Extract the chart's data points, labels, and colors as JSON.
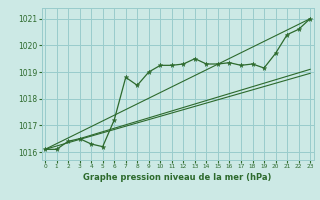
{
  "hours": [
    0,
    1,
    2,
    3,
    4,
    5,
    6,
    7,
    8,
    9,
    10,
    11,
    12,
    13,
    14,
    15,
    16,
    17,
    18,
    19,
    20,
    21,
    22,
    23
  ],
  "pressure": [
    1016.1,
    1016.1,
    1016.4,
    1016.5,
    1016.3,
    1016.2,
    1017.2,
    1018.8,
    1018.5,
    1019.0,
    1019.25,
    1019.25,
    1019.3,
    1019.5,
    1019.3,
    1019.3,
    1019.35,
    1019.25,
    1019.3,
    1019.15,
    1019.7,
    1020.4,
    1020.6,
    1021.0
  ],
  "trend_lines": [
    {
      "x": [
        0,
        23
      ],
      "y": [
        1016.1,
        1021.0
      ]
    },
    {
      "x": [
        0,
        23
      ],
      "y": [
        1016.1,
        1018.95
      ]
    },
    {
      "x": [
        3,
        23
      ],
      "y": [
        1016.5,
        1019.1
      ]
    }
  ],
  "ylim": [
    1015.7,
    1021.4
  ],
  "xlim": [
    -0.3,
    23.3
  ],
  "bg_color": "#cce9e5",
  "grid_color": "#99cccc",
  "line_color": "#2d6a2d",
  "xlabel": "Graphe pression niveau de la mer (hPa)",
  "xticks": [
    0,
    1,
    2,
    3,
    4,
    5,
    6,
    7,
    8,
    9,
    10,
    11,
    12,
    13,
    14,
    15,
    16,
    17,
    18,
    19,
    20,
    21,
    22,
    23
  ],
  "yticks": [
    1016,
    1017,
    1018,
    1019,
    1020,
    1021
  ],
  "tick_color": "#2d6a2d",
  "xlabel_color": "#2d6a2d"
}
